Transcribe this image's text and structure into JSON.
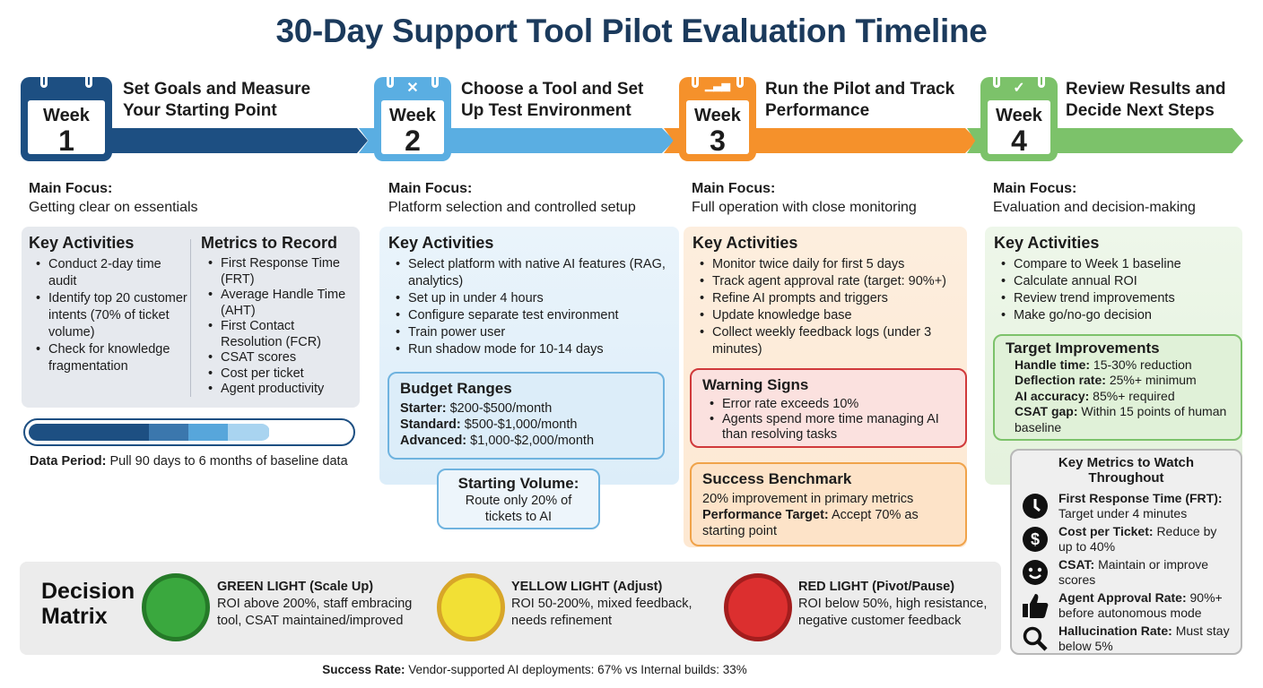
{
  "title": "30-Day Support Tool Pilot Evaluation Timeline",
  "colors": {
    "week1": "#1d4f82",
    "week2": "#5aaee2",
    "week3": "#f5912b",
    "week4": "#7cc26a",
    "title": "#1b3a5c"
  },
  "weeks": [
    {
      "week_label": "Week",
      "number": "1",
      "icon": "calendar-icon",
      "heading": "Set Goals and Measure Your Starting Point",
      "focus_label": "Main Focus:",
      "focus": "Getting clear on essentials"
    },
    {
      "week_label": "Week",
      "number": "2",
      "icon": "tools-icon",
      "heading": "Choose a Tool and Set Up Test Environment",
      "focus_label": "Main Focus:",
      "focus": "Platform selection and controlled setup"
    },
    {
      "week_label": "Week",
      "number": "3",
      "icon": "bar-chart-icon",
      "heading": "Run the Pilot and Track Performance",
      "focus_label": "Main Focus:",
      "focus": "Full operation with close monitoring"
    },
    {
      "week_label": "Week",
      "number": "4",
      "icon": "checkmark-icon",
      "heading": "Review Results and Decide Next Steps",
      "focus_label": "Main Focus:",
      "focus": "Evaluation and decision-making"
    }
  ],
  "week1": {
    "activities_title": "Key Activities",
    "activities": [
      "Conduct 2-day time audit",
      "Identify top 20 customer intents (70% of ticket volume)",
      "Check for knowledge fragmentation"
    ],
    "metrics_title": "Metrics to Record",
    "metrics": [
      "First Response Time (FRT)",
      "Average Handle Time (AHT)",
      "First Contact Resolution (FCR)",
      "CSAT scores",
      "Cost per ticket",
      "Agent productivity"
    ],
    "data_period_label": "Data Period:",
    "data_period": "Pull 90 days to 6 months of baseline data"
  },
  "week2": {
    "activities_title": "Key Activities",
    "activities": [
      "Select platform with native AI features (RAG, analytics)",
      "Set up in under 4 hours",
      "Configure separate test environment",
      "Train power user",
      "Run shadow mode for 10-14 days"
    ],
    "budget_title": "Budget Ranges",
    "budget": [
      {
        "label": "Starter:",
        "value": "$200-$500/month"
      },
      {
        "label": "Standard:",
        "value": "$500-$1,000/month"
      },
      {
        "label": "Advanced:",
        "value": "$1,000-$2,000/month"
      }
    ],
    "volume_title": "Starting Volume:",
    "volume_text": "Route only 20% of tickets to AI"
  },
  "week3": {
    "activities_title": "Key Activities",
    "activities": [
      "Monitor twice daily for first 5 days",
      "Track agent approval rate (target: 90%+)",
      "Refine AI prompts and triggers",
      "Update knowledge base",
      "Collect weekly feedback logs (under 3 minutes)"
    ],
    "warning_title": "Warning Signs",
    "warnings": [
      "Error rate exceeds 10%",
      "Agents spend more time managing AI than resolving tasks"
    ],
    "success_title": "Success Benchmark",
    "success_text": "20% improvement in primary metrics",
    "target_label": "Performance Target:",
    "target_text": "Accept 70% as starting point"
  },
  "week4": {
    "activities_title": "Key Activities",
    "activities": [
      "Compare to Week 1 baseline",
      "Calculate annual ROI",
      "Review trend improvements",
      "Make go/no-go decision"
    ],
    "targets_title": "Target Improvements",
    "targets": [
      {
        "label": "Handle time:",
        "value": "15-30% reduction"
      },
      {
        "label": "Deflection rate:",
        "value": "25%+ minimum"
      },
      {
        "label": "AI accuracy:",
        "value": "85%+ required"
      },
      {
        "label": "CSAT gap:",
        "value": "Within 15 points of human baseline"
      }
    ]
  },
  "key_metrics": {
    "title": "Key Metrics to Watch Throughout",
    "items": [
      {
        "icon": "clock-icon",
        "label": "First Response Time (FRT):",
        "value": "Target under 4 minutes"
      },
      {
        "icon": "dollar-icon",
        "label": "Cost per Ticket:",
        "value": "Reduce by up to 40%"
      },
      {
        "icon": "smiley-icon",
        "label": "CSAT:",
        "value": "Maintain or improve scores"
      },
      {
        "icon": "thumbs-up-icon",
        "label": "Agent Approval Rate:",
        "value": "90%+ before autonomous mode"
      },
      {
        "icon": "magnifier-icon",
        "label": "Hallucination Rate:",
        "value": "Must stay below 5%"
      }
    ]
  },
  "decision_matrix": {
    "title_line1": "Decision",
    "title_line2": "Matrix",
    "lights": [
      {
        "color": "#3aa83e",
        "title": "GREEN LIGHT (Scale Up)",
        "text": "ROI above 200%, staff embracing tool, CSAT maintained/improved"
      },
      {
        "color": "#f2e035",
        "title": "YELLOW LIGHT (Adjust)",
        "text": "ROI 50-200%, mixed feedback, needs refinement"
      },
      {
        "color": "#dc2f2f",
        "title": "RED LIGHT (Pivot/Pause)",
        "text": "ROI below 50%, high resistance, negative customer feedback"
      }
    ]
  },
  "footer": {
    "label": "Success Rate:",
    "text": "Vendor-supported AI deployments: 67% vs Internal builds: 33%"
  }
}
